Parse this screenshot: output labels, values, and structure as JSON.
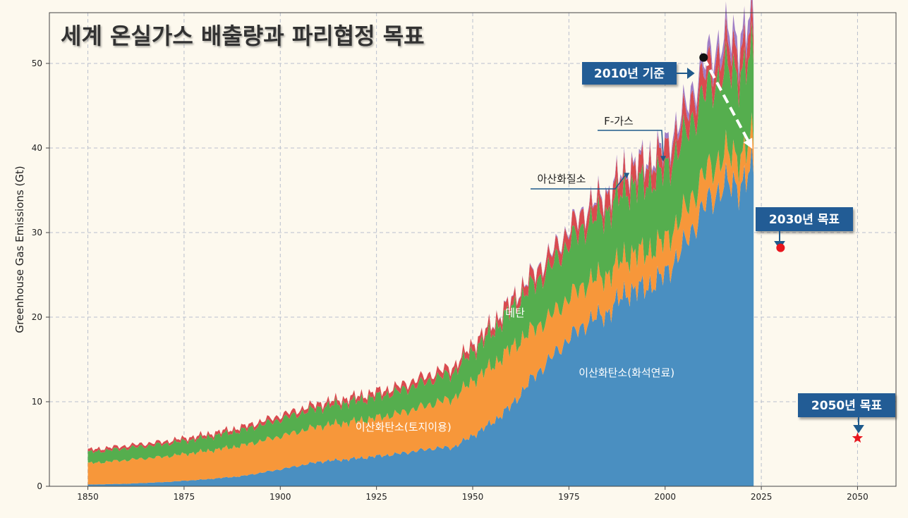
{
  "chart_data": {
    "type": "area",
    "title": "세계 온실가스 배출량과 파리협정 목표",
    "xlabel": "",
    "ylabel": "Greenhouse Gas Emissions (Gt)",
    "xlim": [
      1840,
      2060
    ],
    "ylim": [
      0,
      56
    ],
    "x_ticks": [
      1850,
      1875,
      1900,
      1925,
      1950,
      1975,
      2000,
      2025,
      2050
    ],
    "y_ticks": [
      0,
      10,
      20,
      30,
      40,
      50
    ],
    "grid": true,
    "x": [
      1850,
      1860,
      1870,
      1880,
      1890,
      1900,
      1910,
      1920,
      1930,
      1940,
      1945,
      1950,
      1955,
      1960,
      1965,
      1970,
      1975,
      1980,
      1985,
      1990,
      1995,
      2000,
      2005,
      2010,
      2015,
      2020,
      2023
    ],
    "series": [
      {
        "name": "이산화탄소(화석연료)",
        "color": "#4a8fc1",
        "values": [
          0.2,
          0.3,
          0.5,
          0.8,
          1.2,
          2.0,
          2.9,
          3.3,
          3.8,
          4.5,
          4.6,
          6.0,
          7.5,
          9.5,
          12.5,
          15.0,
          17.5,
          19.5,
          20.5,
          23.0,
          23.5,
          25.0,
          28.5,
          33.0,
          35.5,
          35.8,
          37.5
        ]
      },
      {
        "name": "이산화탄소(토지이용)",
        "color": "#f7973a",
        "values": [
          2.5,
          2.8,
          3.0,
          3.3,
          3.6,
          3.9,
          4.2,
          4.4,
          4.7,
          5.3,
          5.8,
          6.5,
          6.7,
          6.8,
          5.8,
          5.0,
          4.8,
          4.7,
          4.5,
          4.3,
          4.2,
          4.0,
          3.9,
          3.8,
          3.6,
          3.5,
          3.4
        ]
      },
      {
        "name": "메탄",
        "color": "#55ae4e",
        "values": [
          1.3,
          1.4,
          1.5,
          1.6,
          1.8,
          2.0,
          2.2,
          2.4,
          2.6,
          2.9,
          3.0,
          3.5,
          4.0,
          4.6,
          5.2,
          5.8,
          6.4,
          7.0,
          7.5,
          8.0,
          8.2,
          8.3,
          8.8,
          9.5,
          9.8,
          9.8,
          10.0
        ]
      },
      {
        "name": "아산화질소",
        "color": "#d94b4f",
        "values": [
          0.3,
          0.3,
          0.3,
          0.35,
          0.4,
          0.45,
          0.5,
          0.55,
          0.6,
          0.7,
          0.75,
          0.8,
          0.9,
          1.0,
          1.2,
          1.4,
          1.6,
          1.8,
          2.0,
          2.1,
          2.2,
          2.3,
          2.4,
          2.6,
          2.7,
          2.8,
          2.9
        ]
      },
      {
        "name": "F-가스",
        "color": "#a07ec6",
        "values": [
          0,
          0,
          0,
          0,
          0,
          0,
          0,
          0,
          0,
          0,
          0,
          0.02,
          0.05,
          0.08,
          0.12,
          0.15,
          0.2,
          0.25,
          0.3,
          0.4,
          0.5,
          0.6,
          0.9,
          1.2,
          1.5,
          1.7,
          1.9
        ]
      }
    ],
    "annotations": [
      {
        "label": "2010년 기준",
        "x": 2010,
        "y": 50.7,
        "marker": "circle",
        "marker_color": "#111111"
      },
      {
        "label": "2030년 목표",
        "x": 2030,
        "y": 28.2,
        "marker": "circle",
        "marker_color": "#e8161e"
      },
      {
        "label": "2050년 목표",
        "x": 2050,
        "y": 5.7,
        "marker": "star",
        "marker_color": "#e8161e"
      }
    ],
    "colors": {
      "background": "#fdf9ee",
      "grid": "#b9bfcd",
      "callout_box": "#235b95",
      "callout_arrow": "#1f5a8c"
    }
  }
}
